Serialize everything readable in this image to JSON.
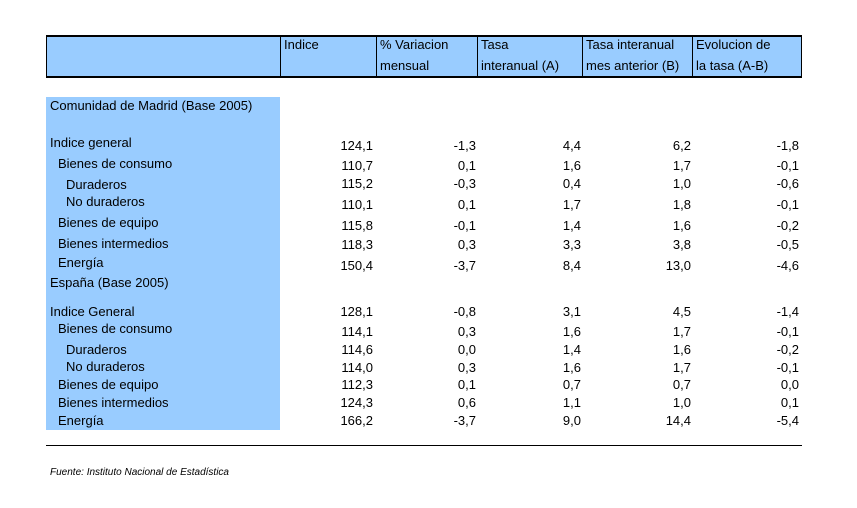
{
  "header": {
    "col_indice": "Indice",
    "col_variacion_1": "% Variacion",
    "col_variacion_2": "mensual",
    "col_tasa_1": "Tasa",
    "col_tasa_2": "interanual (A)",
    "col_tasa_ant_1": "Tasa interanual",
    "col_tasa_ant_2": "mes anterior (B)",
    "col_evol_1": "Evolucion de",
    "col_evol_2": "la tasa (A-B)"
  },
  "madrid": {
    "title": "Comunidad de Madrid (Base 2005)",
    "rows": [
      {
        "label": "Indice general",
        "indice": "124,1",
        "variacion": "-1,3",
        "tasa": "4,4",
        "tasa_ant": "6,2",
        "evol": "-1,8"
      },
      {
        "label": "Bienes de consumo",
        "indice": "110,7",
        "variacion": "0,1",
        "tasa": "1,6",
        "tasa_ant": "1,7",
        "evol": "-0,1"
      },
      {
        "label": "Duraderos",
        "indice": "115,2",
        "variacion": "-0,3",
        "tasa": "0,4",
        "tasa_ant": "1,0",
        "evol": "-0,6"
      },
      {
        "label": "No duraderos",
        "indice": "110,1",
        "variacion": "0,1",
        "tasa": "1,7",
        "tasa_ant": "1,8",
        "evol": "-0,1"
      },
      {
        "label": "Bienes de equipo",
        "indice": "115,8",
        "variacion": "-0,1",
        "tasa": "1,4",
        "tasa_ant": "1,6",
        "evol": "-0,2"
      },
      {
        "label": "Bienes intermedios",
        "indice": "118,3",
        "variacion": "0,3",
        "tasa": "3,3",
        "tasa_ant": "3,8",
        "evol": "-0,5"
      },
      {
        "label": "Energía",
        "indice": "150,4",
        "variacion": "-3,7",
        "tasa": "8,4",
        "tasa_ant": "13,0",
        "evol": "-4,6"
      }
    ]
  },
  "espana": {
    "title": "España (Base 2005)",
    "rows": [
      {
        "label": "Indice General",
        "indice": "128,1",
        "variacion": "-0,8",
        "tasa": "3,1",
        "tasa_ant": "4,5",
        "evol": "-1,4"
      },
      {
        "label": "Bienes de consumo",
        "indice": "114,1",
        "variacion": "0,3",
        "tasa": "1,6",
        "tasa_ant": "1,7",
        "evol": "-0,1"
      },
      {
        "label": "Duraderos",
        "indice": "114,6",
        "variacion": "0,0",
        "tasa": "1,4",
        "tasa_ant": "1,6",
        "evol": "-0,2"
      },
      {
        "label": "No duraderos",
        "indice": "114,0",
        "variacion": "0,3",
        "tasa": "1,6",
        "tasa_ant": "1,7",
        "evol": "-0,1"
      },
      {
        "label": "Bienes de equipo",
        "indice": "112,3",
        "variacion": "0,1",
        "tasa": "0,7",
        "tasa_ant": "0,7",
        "evol": "0,0"
      },
      {
        "label": "Bienes intermedios",
        "indice": "124,3",
        "variacion": "0,6",
        "tasa": "1,1",
        "tasa_ant": "1,0",
        "evol": "0,1"
      },
      {
        "label": "Energía",
        "indice": "166,2",
        "variacion": "-3,7",
        "tasa": "9,0",
        "tasa_ant": "14,4",
        "evol": "-5,4"
      }
    ]
  },
  "footer": {
    "source": "Fuente: Instituto Nacional de Estadística"
  },
  "colors": {
    "header_fill": "#99ccff",
    "label_column_fill": "#99ccff"
  }
}
